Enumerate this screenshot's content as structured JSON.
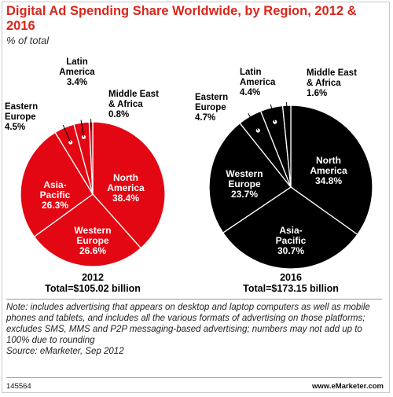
{
  "header": {
    "title": "Digital Ad Spending Share Worldwide, by Region, 2012 & 2016",
    "subtitle": "% of total"
  },
  "colors": {
    "accent": "#e30613",
    "dark": "#000000",
    "title": "#d9261c"
  },
  "chart_data": [
    {
      "type": "pie",
      "year": "2012",
      "total_label": "Total=$105.02 billion",
      "color": "#e30613",
      "slices": [
        {
          "label": [
            "North",
            "America"
          ],
          "value": 38.4,
          "value_label": "38.4%"
        },
        {
          "label": [
            "Western",
            "Europe"
          ],
          "value": 26.6,
          "value_label": "26.6%"
        },
        {
          "label": [
            "Asia-",
            "Pacific"
          ],
          "value": 26.3,
          "value_label": "26.3%"
        },
        {
          "label": [
            "Eastern",
            "Europe"
          ],
          "value": 4.5,
          "value_label": "4.5%"
        },
        {
          "label": [
            "Latin",
            "America"
          ],
          "value": 3.4,
          "value_label": "3.4%"
        },
        {
          "label": [
            "Middle East",
            "& Africa"
          ],
          "value": 0.8,
          "value_label": "0.8%"
        }
      ]
    },
    {
      "type": "pie",
      "year": "2016",
      "total_label": "Total=$173.15 billion",
      "color": "#000000",
      "slices": [
        {
          "label": [
            "North",
            "America"
          ],
          "value": 34.8,
          "value_label": "34.8%"
        },
        {
          "label": [
            "Asia-",
            "Pacific"
          ],
          "value": 30.7,
          "value_label": "30.7%"
        },
        {
          "label": [
            "Western",
            "Europe"
          ],
          "value": 23.7,
          "value_label": "23.7%"
        },
        {
          "label": [
            "Eastern",
            "Europe"
          ],
          "value": 4.7,
          "value_label": "4.7%"
        },
        {
          "label": [
            "Latin",
            "America"
          ],
          "value": 4.4,
          "value_label": "4.4%"
        },
        {
          "label": [
            "Middle East",
            "& Africa"
          ],
          "value": 1.6,
          "value_label": "1.6%"
        }
      ]
    }
  ],
  "note": {
    "text": "Note: includes advertising that appears on desktop and laptop computers as well as mobile phones and tablets, and includes all the various formats of advertising on those platforms; excludes SMS, MMS and P2P messaging-based advertising; numbers may not add up to 100% due to rounding",
    "source": "Source: eMarketer, Sep 2012"
  },
  "footer": {
    "id": "145564",
    "site": "www.eMarketer.com"
  }
}
